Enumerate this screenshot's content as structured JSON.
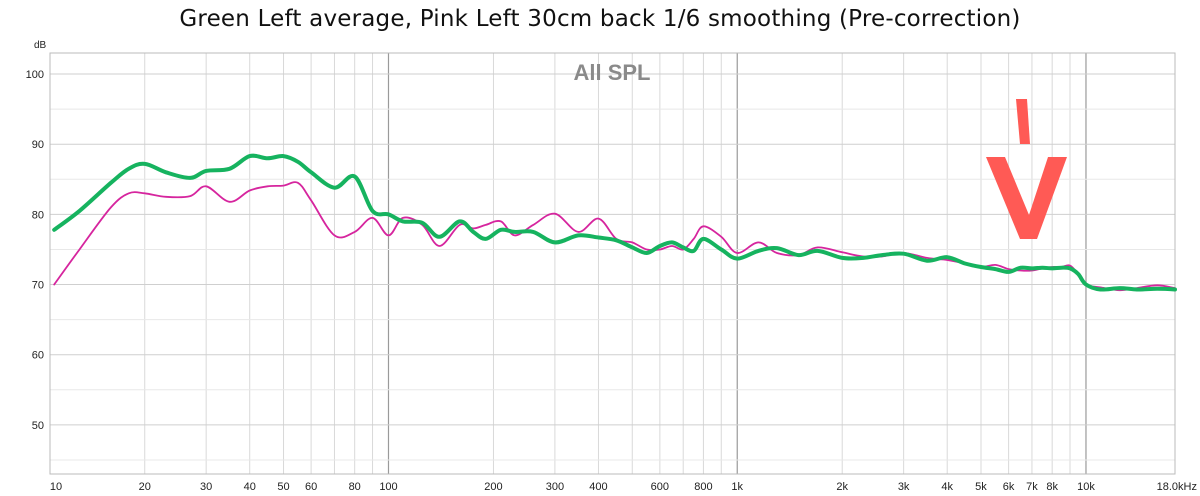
{
  "chart_data": {
    "type": "line",
    "title": "Green Left average, Pink Left 30cm back 1/6 smoothing (Pre-correction)",
    "subtitle": "All SPL",
    "ylabel_unit": "dB",
    "x_scale": "log",
    "xlim": [
      10.7,
      18000
    ],
    "ylim": [
      43,
      103
    ],
    "grid": true,
    "y_ticks": [
      50,
      60,
      70,
      80,
      90,
      100
    ],
    "x_ticks": [
      {
        "value": 20,
        "label": "20"
      },
      {
        "value": 30,
        "label": "30"
      },
      {
        "value": 40,
        "label": "40"
      },
      {
        "value": 50,
        "label": "50"
      },
      {
        "value": 60,
        "label": "60"
      },
      {
        "value": 80,
        "label": "80"
      },
      {
        "value": 100,
        "label": "100"
      },
      {
        "value": 200,
        "label": "200"
      },
      {
        "value": 300,
        "label": "300"
      },
      {
        "value": 400,
        "label": "400"
      },
      {
        "value": 600,
        "label": "600"
      },
      {
        "value": 800,
        "label": "800"
      },
      {
        "value": 1000,
        "label": "1k"
      },
      {
        "value": 2000,
        "label": "2k"
      },
      {
        "value": 3000,
        "label": "3k"
      },
      {
        "value": 4000,
        "label": "4k"
      },
      {
        "value": 5000,
        "label": "5k"
      },
      {
        "value": 6000,
        "label": "6k"
      },
      {
        "value": 7000,
        "label": "7k"
      },
      {
        "value": 8000,
        "label": "8k"
      },
      {
        "value": 10000,
        "label": "10k"
      }
    ],
    "x_edge_labels": {
      "left": "10",
      "right": "18.0kHz"
    },
    "series": [
      {
        "color": "#16b35f",
        "x": [
          11,
          13,
          16,
          18,
          20,
          23,
          27,
          30,
          35,
          40,
          45,
          50,
          55,
          60,
          70,
          80,
          90,
          100,
          110,
          125,
          140,
          160,
          175,
          190,
          210,
          230,
          260,
          300,
          350,
          400,
          450,
          500,
          550,
          600,
          650,
          700,
          750,
          800,
          900,
          1000,
          1150,
          1300,
          1500,
          1700,
          2000,
          2300,
          2600,
          3000,
          3500,
          4000,
          4500,
          5000,
          5500,
          6000,
          6500,
          7000,
          7500,
          8000,
          8500,
          9000,
          9500,
          10000,
          11000,
          12500,
          14000,
          16000,
          18000
        ],
        "y": [
          77.8,
          80.5,
          84.5,
          86.5,
          87.2,
          86.0,
          85.2,
          86.2,
          86.5,
          88.3,
          88.0,
          88.3,
          87.5,
          86.0,
          83.8,
          85.4,
          80.5,
          80.0,
          79.0,
          78.8,
          76.8,
          79.0,
          77.5,
          76.5,
          77.8,
          77.5,
          77.5,
          76.0,
          77.0,
          76.7,
          76.3,
          75.3,
          74.5,
          75.5,
          76.0,
          75.3,
          74.8,
          76.5,
          75.0,
          73.7,
          74.8,
          75.2,
          74.2,
          74.8,
          73.8,
          73.8,
          74.2,
          74.4,
          73.4,
          73.9,
          73.0,
          72.5,
          72.2,
          71.8,
          72.4,
          72.3,
          72.4,
          72.3,
          72.4,
          72.3,
          71.5,
          70.0,
          69.3,
          69.5,
          69.3,
          69.4,
          69.3
        ]
      },
      {
        "color": "#d6259e",
        "x": [
          11,
          13,
          16,
          18,
          20,
          23,
          27,
          30,
          35,
          40,
          45,
          50,
          55,
          60,
          70,
          80,
          90,
          100,
          110,
          125,
          140,
          160,
          175,
          190,
          210,
          230,
          260,
          300,
          350,
          400,
          450,
          500,
          550,
          600,
          650,
          700,
          750,
          800,
          900,
          1000,
          1150,
          1300,
          1500,
          1700,
          2000,
          2300,
          2600,
          3000,
          3500,
          4000,
          4500,
          5000,
          5500,
          6000,
          6500,
          7000,
          7500,
          8000,
          8500,
          9000,
          9500,
          10000,
          11000,
          12500,
          14000,
          16000,
          18000
        ],
        "y": [
          70.0,
          75.0,
          81.0,
          83.0,
          83.0,
          82.5,
          82.6,
          84.0,
          81.8,
          83.4,
          84.0,
          84.1,
          84.5,
          82.0,
          77.0,
          77.5,
          79.5,
          77.0,
          79.5,
          78.5,
          75.5,
          78.5,
          78.0,
          78.5,
          79.0,
          77.0,
          78.5,
          80.1,
          77.5,
          79.4,
          76.5,
          76.0,
          75.0,
          75.0,
          75.5,
          75.0,
          76.5,
          78.3,
          76.8,
          74.5,
          76.0,
          74.5,
          74.2,
          75.3,
          74.6,
          74.0,
          74.0,
          74.5,
          73.8,
          73.5,
          73.0,
          72.5,
          72.8,
          72.2,
          72.0,
          72.0,
          72.3,
          72.5,
          72.5,
          72.7,
          71.5,
          70.0,
          69.6,
          69.2,
          69.5,
          69.9,
          69.5
        ]
      }
    ]
  },
  "annotation": {
    "color": "#ff5a55",
    "glyph": "arrow-down-mark"
  }
}
